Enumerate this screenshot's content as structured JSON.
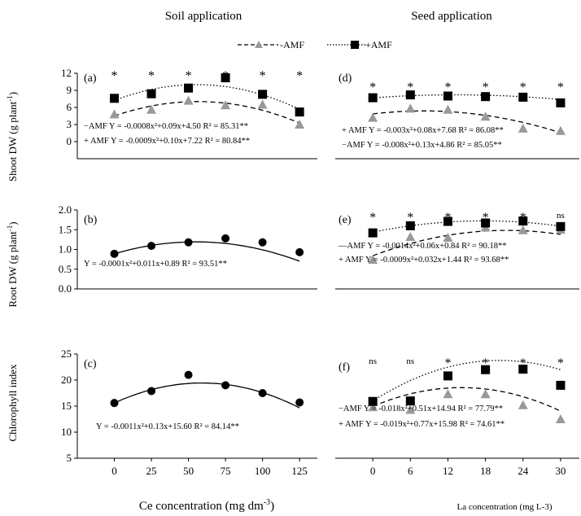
{
  "columns": {
    "left": "Soil application",
    "right": "Seed application"
  },
  "legend": {
    "minus": "-AMF",
    "plus": "+AMF",
    "placement": "top-center"
  },
  "ylabels": {
    "row1": {
      "main": "Shoot DW (g plant",
      "sup": "-1",
      "tail": ")"
    },
    "row2": {
      "main": "Root DW (g plant",
      "sup": "-1",
      "tail": ")"
    },
    "row3": {
      "main": "Chlorophyll index",
      "sup": "",
      "tail": ""
    }
  },
  "xlabels": {
    "left": {
      "main": "Ce concentration (mg dm",
      "sup": "-3",
      "tail": ")"
    },
    "right": "La concentration (mg L-3)"
  },
  "colors": {
    "minus": "#999999",
    "plus": "#000000",
    "single": "#000000"
  },
  "chart_data": [
    {
      "id": "a",
      "label": "(a)",
      "type": "scatter",
      "x": [
        0,
        25,
        50,
        75,
        100,
        125
      ],
      "xlim": [
        -25,
        137
      ],
      "ylim": [
        -3,
        12
      ],
      "yticks": [
        0,
        3,
        6,
        9,
        12
      ],
      "show_xticks": false,
      "series": [
        {
          "name": "-AMF",
          "key": "minus",
          "marker": "triangle",
          "line": "dashed",
          "values": [
            4.8,
            5.6,
            7.2,
            6.4,
            6.5,
            3.0
          ],
          "fit": [
            -0.0008,
            0.09,
            4.5
          ]
        },
        {
          "name": "+AMF",
          "key": "plus",
          "marker": "square",
          "line": "dotted",
          "values": [
            7.6,
            8.4,
            9.4,
            11.2,
            8.3,
            5.2
          ],
          "fit": [
            -0.0009,
            0.1,
            7.22
          ]
        }
      ],
      "sig": [
        "*",
        "*",
        "*",
        "*",
        "*",
        "*"
      ],
      "equations": [
        "−AMF  Y = -0.0008x²+0.09x+4.50  R² = 85.31**",
        "+ AMF  Y = -0.0009x²+0.10x+7.22  R² = 80.84**"
      ]
    },
    {
      "id": "b",
      "label": "(b)",
      "type": "scatter",
      "x": [
        0,
        25,
        50,
        75,
        100,
        125
      ],
      "xlim": [
        -25,
        137
      ],
      "ylim": [
        0,
        2.0
      ],
      "yticks": [
        0.0,
        0.5,
        1.0,
        1.5,
        2.0
      ],
      "show_xticks": false,
      "series": [
        {
          "name": "",
          "key": "single",
          "marker": "circle",
          "line": "solid",
          "values": [
            0.89,
            1.09,
            1.18,
            1.28,
            1.18,
            0.93
          ],
          "fit": [
            -0.0001,
            0.011,
            0.89
          ]
        }
      ],
      "sig": [],
      "equations": [
        "Y = -0.0001x²+0.011x+0.89  R² = 93.51**"
      ]
    },
    {
      "id": "c",
      "label": "(c)",
      "type": "scatter",
      "x": [
        0,
        25,
        50,
        75,
        100,
        125
      ],
      "xlim": [
        -25,
        137
      ],
      "ylim": [
        5,
        25
      ],
      "yticks": [
        5,
        10,
        15,
        20,
        25
      ],
      "show_xticks": true,
      "xticks": [
        0,
        25,
        50,
        75,
        100,
        125
      ],
      "series": [
        {
          "name": "",
          "key": "single",
          "marker": "circle",
          "line": "solid",
          "values": [
            15.6,
            17.9,
            21.0,
            19.0,
            17.5,
            15.7
          ],
          "fit": [
            -0.0011,
            0.13,
            15.6
          ]
        }
      ],
      "sig": [],
      "equations": [
        "Y = -0.0011x²+0.13x+15.60  R² = 84.14**"
      ]
    },
    {
      "id": "d",
      "label": "(d)",
      "type": "scatter",
      "x": [
        0,
        6,
        12,
        18,
        24,
        30
      ],
      "xlim": [
        -6,
        33
      ],
      "ylim": [
        -3,
        12
      ],
      "yticks": [],
      "show_xticks": false,
      "series": [
        {
          "name": "-AMF",
          "key": "minus",
          "marker": "triangle",
          "line": "dashed",
          "values": [
            4.2,
            5.8,
            5.6,
            4.4,
            2.3,
            1.9
          ],
          "fit": [
            -0.008,
            0.13,
            4.86
          ]
        },
        {
          "name": "+AMF",
          "key": "plus",
          "marker": "square",
          "line": "dotted",
          "values": [
            7.7,
            8.2,
            8.0,
            7.9,
            7.8,
            6.8
          ],
          "fit": [
            -0.003,
            0.08,
            7.68
          ]
        }
      ],
      "sig": [
        "*",
        "*",
        "*",
        "*",
        "*",
        "*"
      ],
      "equations": [
        "+ AMF  Y = -0.003x²+0.08x+7.68  R² = 86.08**",
        "−AMF  Y = -0.008x²+0.13x+4.86  R² = 85.05**"
      ]
    },
    {
      "id": "e",
      "label": "(e)",
      "type": "scatter",
      "x": [
        0,
        6,
        12,
        18,
        24,
        30
      ],
      "xlim": [
        -6,
        33
      ],
      "ylim": [
        0,
        2.0
      ],
      "yticks": [],
      "show_xticks": false,
      "series": [
        {
          "name": "-AMF",
          "key": "minus",
          "marker": "triangle",
          "line": "dashed",
          "values": [
            0.74,
            1.32,
            1.3,
            1.56,
            1.49,
            1.5
          ],
          "fit": [
            -0.0014,
            0.06,
            0.84
          ]
        },
        {
          "name": "+AMF",
          "key": "plus",
          "marker": "square",
          "line": "dotted",
          "values": [
            1.42,
            1.6,
            1.71,
            1.67,
            1.72,
            1.58
          ],
          "fit": [
            -0.0009,
            0.032,
            1.44
          ]
        }
      ],
      "sig": [
        "*",
        "*",
        "*",
        "*",
        "*",
        "ns"
      ],
      "equations": [
        "—AMF  Y = -0.0014x²+0.06x+0.84   R² = 90.18**",
        "+ AMF  Y = -0.0009x²+0.032x+1.44  R² = 93.68**"
      ]
    },
    {
      "id": "f",
      "label": "(f)",
      "type": "scatter",
      "x": [
        0,
        6,
        12,
        18,
        24,
        30
      ],
      "xlim": [
        -6,
        33
      ],
      "ylim": [
        5,
        25
      ],
      "yticks": [],
      "show_xticks": true,
      "xticks": [
        0,
        6,
        12,
        18,
        24,
        30
      ],
      "series": [
        {
          "name": "-AMF",
          "key": "minus",
          "marker": "triangle",
          "line": "dashed",
          "values": [
            14.8,
            14.3,
            17.3,
            17.3,
            15.2,
            12.5
          ],
          "fit": [
            -0.018,
            0.51,
            14.94
          ]
        },
        {
          "name": "+AMF",
          "key": "plus",
          "marker": "square",
          "line": "dotted",
          "values": [
            15.9,
            16.0,
            20.8,
            22.0,
            22.1,
            19.0
          ],
          "fit": [
            -0.019,
            0.77,
            15.98
          ]
        }
      ],
      "sig": [
        "ns",
        "ns",
        "*",
        "*",
        "*",
        "*"
      ],
      "equations": [
        "−AMF  Y = -0.018x²+0.51x+14.94  R² = 77.79**",
        "+ AMF  Y = -0.019x²+0.77x+15.98  R² = 74.61**"
      ]
    }
  ]
}
